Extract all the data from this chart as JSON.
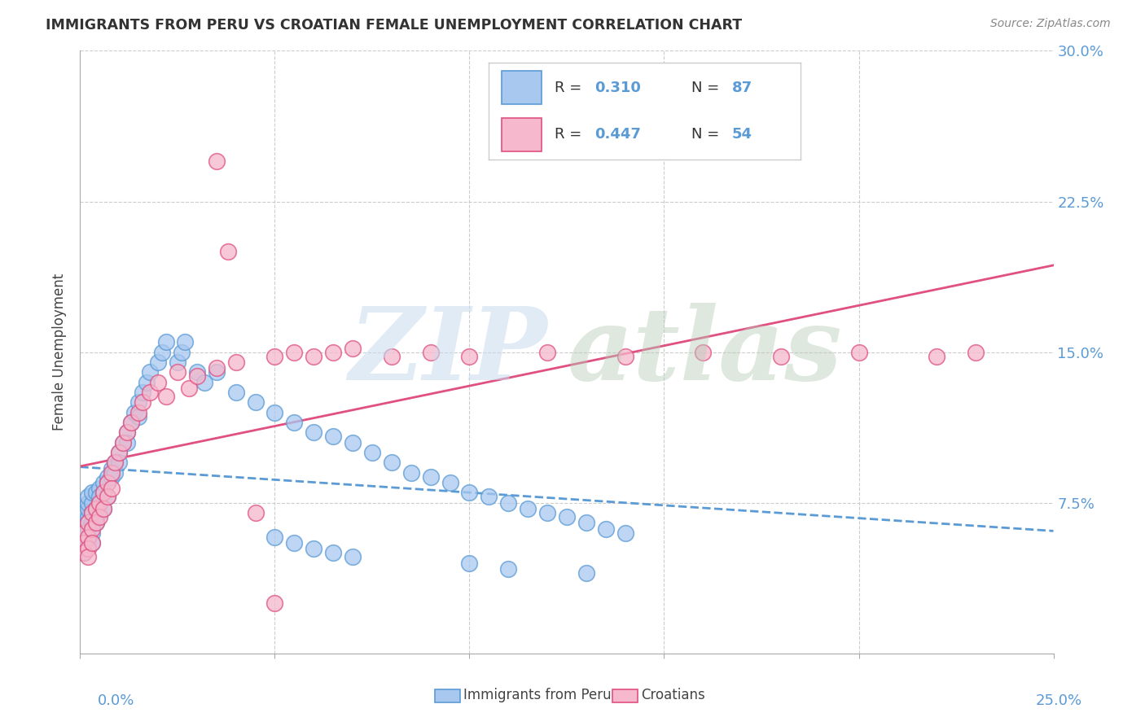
{
  "title": "IMMIGRANTS FROM PERU VS CROATIAN FEMALE UNEMPLOYMENT CORRELATION CHART",
  "source": "Source: ZipAtlas.com",
  "ylabel": "Female Unemployment",
  "xlim": [
    0.0,
    0.25
  ],
  "ylim": [
    0.0,
    0.3
  ],
  "color_peru": "#a8c8f0",
  "color_croatia": "#f5b8cc",
  "color_peru_line": "#5b9bd5",
  "color_croatia_line": "#e05080",
  "watermark_zip": "ZIP",
  "watermark_atlas": "atlas",
  "legend_r1": "R = 0.310",
  "legend_n1": "N = 87",
  "legend_r2": "R = 0.447",
  "legend_n2": "N = 54",
  "peru_x": [
    0.001,
    0.001,
    0.001,
    0.001,
    0.001,
    0.002,
    0.002,
    0.002,
    0.002,
    0.002,
    0.002,
    0.002,
    0.002,
    0.003,
    0.003,
    0.003,
    0.003,
    0.003,
    0.003,
    0.004,
    0.004,
    0.004,
    0.004,
    0.005,
    0.005,
    0.005,
    0.005,
    0.006,
    0.006,
    0.006,
    0.007,
    0.007,
    0.007,
    0.008,
    0.008,
    0.009,
    0.009,
    0.01,
    0.01,
    0.011,
    0.012,
    0.012,
    0.013,
    0.014,
    0.015,
    0.015,
    0.016,
    0.017,
    0.018,
    0.02,
    0.021,
    0.022,
    0.025,
    0.026,
    0.027,
    0.03,
    0.032,
    0.035,
    0.04,
    0.045,
    0.05,
    0.055,
    0.06,
    0.065,
    0.07,
    0.075,
    0.08,
    0.085,
    0.09,
    0.095,
    0.1,
    0.105,
    0.11,
    0.115,
    0.12,
    0.125,
    0.13,
    0.135,
    0.14,
    0.05,
    0.055,
    0.06,
    0.065,
    0.07,
    0.1,
    0.11,
    0.13
  ],
  "peru_y": [
    0.055,
    0.06,
    0.065,
    0.07,
    0.05,
    0.058,
    0.062,
    0.068,
    0.072,
    0.075,
    0.078,
    0.065,
    0.055,
    0.06,
    0.07,
    0.075,
    0.08,
    0.065,
    0.055,
    0.068,
    0.072,
    0.08,
    0.065,
    0.075,
    0.082,
    0.078,
    0.07,
    0.08,
    0.085,
    0.072,
    0.088,
    0.085,
    0.078,
    0.092,
    0.088,
    0.095,
    0.09,
    0.1,
    0.095,
    0.105,
    0.11,
    0.105,
    0.115,
    0.12,
    0.125,
    0.118,
    0.13,
    0.135,
    0.14,
    0.145,
    0.15,
    0.155,
    0.145,
    0.15,
    0.155,
    0.14,
    0.135,
    0.14,
    0.13,
    0.125,
    0.12,
    0.115,
    0.11,
    0.108,
    0.105,
    0.1,
    0.095,
    0.09,
    0.088,
    0.085,
    0.08,
    0.078,
    0.075,
    0.072,
    0.07,
    0.068,
    0.065,
    0.062,
    0.06,
    0.058,
    0.055,
    0.052,
    0.05,
    0.048,
    0.045,
    0.042,
    0.04
  ],
  "croatia_x": [
    0.001,
    0.001,
    0.001,
    0.002,
    0.002,
    0.002,
    0.002,
    0.003,
    0.003,
    0.003,
    0.004,
    0.004,
    0.005,
    0.005,
    0.006,
    0.006,
    0.007,
    0.007,
    0.008,
    0.008,
    0.009,
    0.01,
    0.011,
    0.012,
    0.013,
    0.015,
    0.016,
    0.018,
    0.02,
    0.022,
    0.025,
    0.028,
    0.03,
    0.035,
    0.04,
    0.05,
    0.055,
    0.06,
    0.065,
    0.07,
    0.08,
    0.09,
    0.1,
    0.12,
    0.14,
    0.16,
    0.18,
    0.2,
    0.22,
    0.23,
    0.035,
    0.038,
    0.045,
    0.05
  ],
  "croatia_y": [
    0.06,
    0.055,
    0.05,
    0.065,
    0.058,
    0.052,
    0.048,
    0.07,
    0.062,
    0.055,
    0.072,
    0.065,
    0.075,
    0.068,
    0.08,
    0.072,
    0.085,
    0.078,
    0.09,
    0.082,
    0.095,
    0.1,
    0.105,
    0.11,
    0.115,
    0.12,
    0.125,
    0.13,
    0.135,
    0.128,
    0.14,
    0.132,
    0.138,
    0.142,
    0.145,
    0.148,
    0.15,
    0.148,
    0.15,
    0.152,
    0.148,
    0.15,
    0.148,
    0.15,
    0.148,
    0.15,
    0.148,
    0.15,
    0.148,
    0.15,
    0.245,
    0.2,
    0.07,
    0.025
  ]
}
